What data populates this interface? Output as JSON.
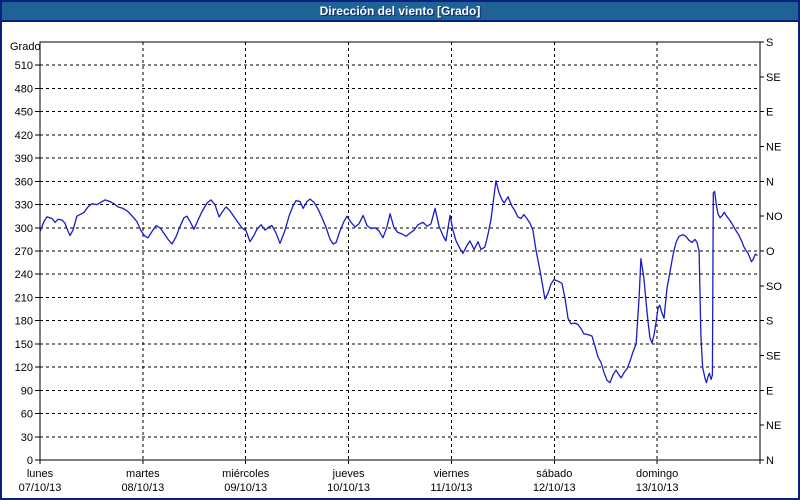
{
  "window": {
    "title": "Dirección del viento [Grado]"
  },
  "colors": {
    "titlebar_bg": "#1f6396",
    "frame_border": "#0a2080",
    "series_line": "#1b1bc8",
    "grid": "#000000",
    "text": "#000000"
  },
  "chart_data": {
    "type": "line",
    "title": "Dirección del viento [Grado]",
    "ylabel": "Grado",
    "xlabel": "",
    "ylim": [
      0,
      540
    ],
    "x_range_hours": 168,
    "grid": "dashed",
    "legend": "none",
    "y_ticks": [
      0,
      30,
      60,
      90,
      120,
      150,
      180,
      210,
      240,
      270,
      300,
      330,
      360,
      390,
      420,
      450,
      480,
      510
    ],
    "y_right_labels": [
      {
        "deg": 540,
        "label": "S"
      },
      {
        "deg": 495,
        "label": "SE"
      },
      {
        "deg": 450,
        "label": "E"
      },
      {
        "deg": 405,
        "label": "NE"
      },
      {
        "deg": 360,
        "label": "N"
      },
      {
        "deg": 315,
        "label": "NO"
      },
      {
        "deg": 270,
        "label": "O"
      },
      {
        "deg": 225,
        "label": "SO"
      },
      {
        "deg": 180,
        "label": "S"
      },
      {
        "deg": 135,
        "label": "SE"
      },
      {
        "deg": 90,
        "label": "E"
      },
      {
        "deg": 45,
        "label": "NE"
      },
      {
        "deg": 0,
        "label": "N"
      }
    ],
    "x_days": [
      {
        "name": "lunes",
        "date": "07/10/13"
      },
      {
        "name": "martes",
        "date": "08/10/13"
      },
      {
        "name": "miércoles",
        "date": "09/10/13"
      },
      {
        "name": "jueves",
        "date": "10/10/13"
      },
      {
        "name": "viernes",
        "date": "11/10/13"
      },
      {
        "name": "sábado",
        "date": "12/10/13"
      },
      {
        "name": "domingo",
        "date": "13/10/13"
      }
    ],
    "series": [
      {
        "name": "Dirección del viento",
        "units": "Grado",
        "points": [
          [
            0,
            295
          ],
          [
            0.9,
            308
          ],
          [
            1.6,
            314
          ],
          [
            2.8,
            312
          ],
          [
            3.5,
            307
          ],
          [
            4.2,
            311
          ],
          [
            5.1,
            310
          ],
          [
            5.8,
            306
          ],
          [
            6.5,
            296
          ],
          [
            7,
            290
          ],
          [
            7.7,
            297
          ],
          [
            8.6,
            315
          ],
          [
            9.3,
            317
          ],
          [
            10.3,
            320
          ],
          [
            11.2,
            327
          ],
          [
            12.1,
            331
          ],
          [
            13.3,
            330
          ],
          [
            14.2,
            333
          ],
          [
            15.2,
            336
          ],
          [
            16.3,
            334
          ],
          [
            17.3,
            331
          ],
          [
            18.2,
            327
          ],
          [
            19.4,
            325
          ],
          [
            20.5,
            321
          ],
          [
            21.7,
            314
          ],
          [
            22.6,
            308
          ],
          [
            23.6,
            296
          ],
          [
            24.5,
            289
          ],
          [
            25.2,
            287
          ],
          [
            26.1,
            295
          ],
          [
            27.1,
            303
          ],
          [
            28,
            300
          ],
          [
            28.9,
            293
          ],
          [
            29.9,
            285
          ],
          [
            30.8,
            279
          ],
          [
            31.7,
            288
          ],
          [
            32.7,
            302
          ],
          [
            33.6,
            313
          ],
          [
            34.3,
            315
          ],
          [
            35.2,
            306
          ],
          [
            35.9,
            298
          ],
          [
            36.9,
            310
          ],
          [
            37.8,
            321
          ],
          [
            39,
            332
          ],
          [
            39.9,
            336
          ],
          [
            40.8,
            330
          ],
          [
            41.8,
            314
          ],
          [
            42.5,
            320
          ],
          [
            43.4,
            327
          ],
          [
            44.3,
            322
          ],
          [
            45.3,
            314
          ],
          [
            46.2,
            307
          ],
          [
            47.1,
            300
          ],
          [
            48.1,
            296
          ],
          [
            49,
            282
          ],
          [
            49.9,
            290
          ],
          [
            50.6,
            298
          ],
          [
            51.6,
            304
          ],
          [
            52.5,
            297
          ],
          [
            53.4,
            301
          ],
          [
            54.1,
            303
          ],
          [
            55.1,
            293
          ],
          [
            56,
            280
          ],
          [
            57.2,
            297
          ],
          [
            58.1,
            315
          ],
          [
            59,
            328
          ],
          [
            59.7,
            335
          ],
          [
            60.7,
            334
          ],
          [
            61.4,
            325
          ],
          [
            62.3,
            334
          ],
          [
            63,
            337
          ],
          [
            63.9,
            333
          ],
          [
            64.9,
            324
          ],
          [
            65.8,
            313
          ],
          [
            66.7,
            301
          ],
          [
            67.7,
            285
          ],
          [
            68.4,
            279
          ],
          [
            69.1,
            281
          ],
          [
            70,
            296
          ],
          [
            70.9,
            308
          ],
          [
            71.6,
            315
          ],
          [
            72.6,
            307
          ],
          [
            73.5,
            301
          ],
          [
            74.4,
            305
          ],
          [
            75.4,
            316
          ],
          [
            76.3,
            303
          ],
          [
            77.2,
            299
          ],
          [
            78.2,
            300
          ],
          [
            79.1,
            296
          ],
          [
            80,
            287
          ],
          [
            80.9,
            300
          ],
          [
            81.7,
            318
          ],
          [
            82.6,
            300
          ],
          [
            83.5,
            294
          ],
          [
            84.5,
            292
          ],
          [
            85.4,
            289
          ],
          [
            86.3,
            293
          ],
          [
            87.3,
            297
          ],
          [
            88.2,
            304
          ],
          [
            89.4,
            307
          ],
          [
            90.3,
            302
          ],
          [
            91.2,
            305
          ],
          [
            92.2,
            325
          ],
          [
            93.1,
            302
          ],
          [
            94,
            290
          ],
          [
            94.7,
            283
          ],
          [
            95.7,
            316
          ],
          [
            96.4,
            296
          ],
          [
            97.1,
            283
          ],
          [
            98,
            273
          ],
          [
            98.7,
            267
          ],
          [
            99.6,
            277
          ],
          [
            100.3,
            283
          ],
          [
            101.3,
            272
          ],
          [
            102.2,
            282
          ],
          [
            102.9,
            272
          ],
          [
            103.8,
            275
          ],
          [
            104.5,
            291
          ],
          [
            105.2,
            310
          ],
          [
            105.9,
            340
          ],
          [
            106.4,
            361
          ],
          [
            107.1,
            345
          ],
          [
            107.8,
            336
          ],
          [
            108.3,
            332
          ],
          [
            109.2,
            340
          ],
          [
            110.1,
            328
          ],
          [
            110.8,
            322
          ],
          [
            111.5,
            314
          ],
          [
            112.2,
            312
          ],
          [
            112.9,
            317
          ],
          [
            113.6,
            312
          ],
          [
            114.3,
            306
          ],
          [
            115,
            297
          ],
          [
            115.7,
            272
          ],
          [
            116.7,
            244
          ],
          [
            117.4,
            222
          ],
          [
            117.8,
            208
          ],
          [
            118.5,
            215
          ],
          [
            119.2,
            227
          ],
          [
            119.9,
            233
          ],
          [
            120.9,
            231
          ],
          [
            121.8,
            228
          ],
          [
            122.5,
            209
          ],
          [
            123.2,
            183
          ],
          [
            123.9,
            176
          ],
          [
            124.8,
            177
          ],
          [
            125.5,
            175
          ],
          [
            126.2,
            170
          ],
          [
            126.9,
            163
          ],
          [
            127.9,
            162
          ],
          [
            128.8,
            160
          ],
          [
            129.5,
            147
          ],
          [
            130.2,
            133
          ],
          [
            130.9,
            126
          ],
          [
            131.6,
            113
          ],
          [
            132.3,
            103
          ],
          [
            133,
            100
          ],
          [
            133.7,
            110
          ],
          [
            134.4,
            116
          ],
          [
            135.1,
            110
          ],
          [
            135.6,
            106
          ],
          [
            136.3,
            113
          ],
          [
            137,
            118
          ],
          [
            137.7,
            128
          ],
          [
            138.4,
            140
          ],
          [
            139.1,
            150
          ],
          [
            139.8,
            210
          ],
          [
            140.2,
            260
          ],
          [
            140.9,
            235
          ],
          [
            141.4,
            205
          ],
          [
            141.9,
            178
          ],
          [
            142.3,
            158
          ],
          [
            142.8,
            151
          ],
          [
            143.3,
            162
          ],
          [
            143.8,
            180
          ],
          [
            144.2,
            196
          ],
          [
            144.6,
            200
          ],
          [
            145.1,
            190
          ],
          [
            145.6,
            183
          ],
          [
            146.3,
            222
          ],
          [
            147,
            243
          ],
          [
            147.7,
            265
          ],
          [
            148.4,
            281
          ],
          [
            149.1,
            289
          ],
          [
            150,
            291
          ],
          [
            150.7,
            289
          ],
          [
            151.4,
            284
          ],
          [
            152.1,
            281
          ],
          [
            152.8,
            285
          ],
          [
            153.3,
            281
          ],
          [
            153.8,
            270
          ],
          [
            154.2,
            160
          ],
          [
            154.6,
            120
          ],
          [
            155.2,
            105
          ],
          [
            155.5,
            100
          ],
          [
            155.9,
            108
          ],
          [
            156.2,
            112
          ],
          [
            156.6,
            104
          ],
          [
            156.9,
            110
          ],
          [
            157.1,
            345
          ],
          [
            157.4,
            347
          ],
          [
            157.8,
            330
          ],
          [
            158.2,
            318
          ],
          [
            158.7,
            313
          ],
          [
            159.2,
            316
          ],
          [
            159.7,
            320
          ],
          [
            160.2,
            315
          ],
          [
            160.9,
            310
          ],
          [
            161.6,
            304
          ],
          [
            162.3,
            297
          ],
          [
            163,
            291
          ],
          [
            163.7,
            283
          ],
          [
            164.2,
            276
          ],
          [
            164.7,
            271
          ],
          [
            165.2,
            267
          ],
          [
            165.6,
            262
          ],
          [
            166,
            256
          ],
          [
            166.4,
            259
          ],
          [
            166.9,
            266
          ],
          [
            167.4,
            264
          ]
        ]
      }
    ]
  }
}
